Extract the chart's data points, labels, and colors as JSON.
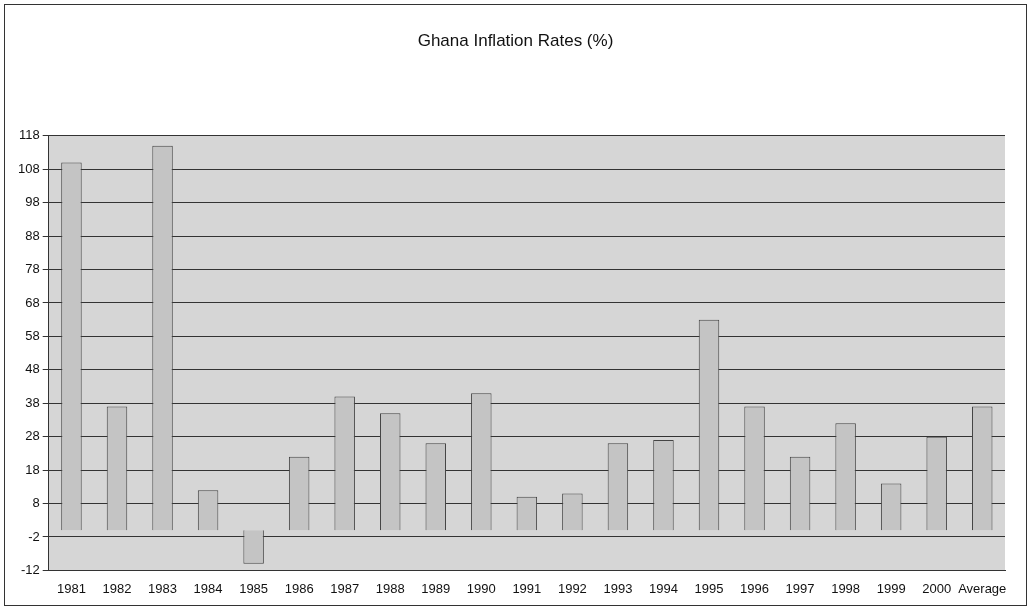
{
  "chart_data": {
    "type": "bar",
    "title": "Ghana Inflation Rates (%)",
    "categories": [
      "1981",
      "1982",
      "1983",
      "1984",
      "1985",
      "1986",
      "1987",
      "1988",
      "1989",
      "1990",
      "1991",
      "1992",
      "1993",
      "1994",
      "1995",
      "1996",
      "1997",
      "1998",
      "1999",
      "2000",
      "Average"
    ],
    "values": [
      110,
      37,
      115,
      12,
      -10,
      22,
      40,
      35,
      26,
      41,
      10,
      11,
      26,
      27,
      63,
      37,
      22,
      32,
      14,
      28,
      37
    ],
    "color": "#c4c4c4",
    "ylim": [
      -12,
      118
    ],
    "yticks": [
      -12,
      -2,
      8,
      18,
      28,
      38,
      48,
      58,
      68,
      78,
      88,
      98,
      108,
      118
    ],
    "grid": "y",
    "legend": false
  }
}
